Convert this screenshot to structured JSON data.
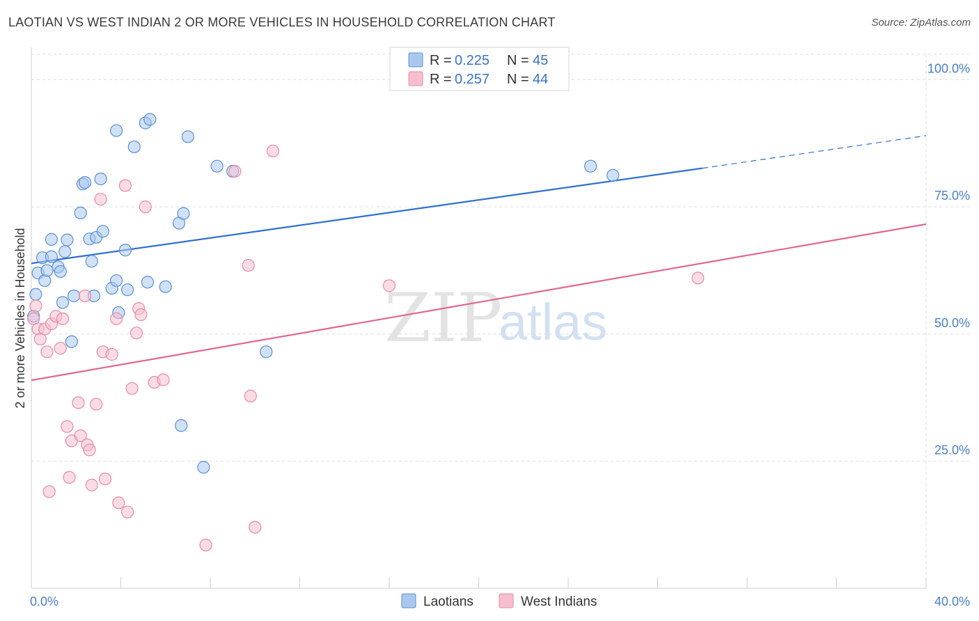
{
  "header": {
    "title": "LAOTIAN VS WEST INDIAN 2 OR MORE VEHICLES IN HOUSEHOLD CORRELATION CHART",
    "source": "Source: ZipAtlas.com"
  },
  "watermark": {
    "zip": "ZIP",
    "atlas": "atlas"
  },
  "legend": {
    "r_label": "R =",
    "n_label": "N =",
    "rows": [
      {
        "r": "0.225",
        "n": "45"
      },
      {
        "r": "0.257",
        "n": "44"
      }
    ]
  },
  "colors": {
    "laotians_fill": "#aac8ee",
    "laotians_stroke": "#5b8fd6",
    "laotians_line": "#2f6fcf",
    "westindians_fill": "#f6bfcf",
    "westindians_stroke": "#e98aa6",
    "westindians_line": "#e0678f",
    "tick_text": "#4a7fc6",
    "grid": "#dddddd"
  },
  "chart_data": {
    "type": "scatter",
    "title": "LAOTIAN VS WEST INDIAN 2 OR MORE VEHICLES IN HOUSEHOLD CORRELATION CHART",
    "xlabel": "",
    "ylabel": "2 or more Vehicles in Household",
    "xlim": [
      0,
      40
    ],
    "ylim": [
      0,
      105
    ],
    "x_tick_labels": [
      "0.0%",
      "40.0%"
    ],
    "y_ticks": [
      25,
      50,
      75,
      100
    ],
    "y_tick_labels": [
      "25.0%",
      "50.0%",
      "75.0%",
      "100.0%"
    ],
    "grid": true,
    "legend_position": "top-center",
    "series": [
      {
        "name": "Laotians",
        "r": 0.225,
        "n": 45,
        "points": [
          [
            0.1,
            53.5
          ],
          [
            0.2,
            57.8
          ],
          [
            0.3,
            62.0
          ],
          [
            0.5,
            65.0
          ],
          [
            0.6,
            60.5
          ],
          [
            0.7,
            62.5
          ],
          [
            0.9,
            65.2
          ],
          [
            0.9,
            68.6
          ],
          [
            1.2,
            63.2
          ],
          [
            1.3,
            62.3
          ],
          [
            1.4,
            56.2
          ],
          [
            1.5,
            66.2
          ],
          [
            1.6,
            68.5
          ],
          [
            1.8,
            48.5
          ],
          [
            1.9,
            57.5
          ],
          [
            2.2,
            73.8
          ],
          [
            2.3,
            79.5
          ],
          [
            2.4,
            79.8
          ],
          [
            2.6,
            68.7
          ],
          [
            2.7,
            64.3
          ],
          [
            2.8,
            57.5
          ],
          [
            2.9,
            69.0
          ],
          [
            3.1,
            80.5
          ],
          [
            3.2,
            70.2
          ],
          [
            3.6,
            59.0
          ],
          [
            3.8,
            60.5
          ],
          [
            3.8,
            90.0
          ],
          [
            3.9,
            54.2
          ],
          [
            4.2,
            66.5
          ],
          [
            4.3,
            58.7
          ],
          [
            4.6,
            86.8
          ],
          [
            5.1,
            91.5
          ],
          [
            5.2,
            60.2
          ],
          [
            5.3,
            92.2
          ],
          [
            6.0,
            59.3
          ],
          [
            6.6,
            71.8
          ],
          [
            6.7,
            32.0
          ],
          [
            6.8,
            73.7
          ],
          [
            7.0,
            88.8
          ],
          [
            7.7,
            23.8
          ],
          [
            8.3,
            83.0
          ],
          [
            9.0,
            82.0
          ],
          [
            10.5,
            46.5
          ],
          [
            25.0,
            83.0
          ],
          [
            26.0,
            81.2
          ]
        ],
        "trend": {
          "x": [
            0,
            30
          ],
          "y": [
            63.9,
            82.6
          ],
          "dashed_to": [
            40,
            89.0
          ]
        }
      },
      {
        "name": "West Indians",
        "r": 0.257,
        "n": 44,
        "points": [
          [
            0.1,
            53.0
          ],
          [
            0.2,
            55.5
          ],
          [
            0.3,
            51.0
          ],
          [
            0.4,
            49.0
          ],
          [
            0.6,
            51.0
          ],
          [
            0.7,
            46.5
          ],
          [
            0.8,
            19.0
          ],
          [
            0.9,
            52.0
          ],
          [
            1.1,
            53.5
          ],
          [
            1.3,
            47.2
          ],
          [
            1.4,
            53.0
          ],
          [
            1.6,
            31.8
          ],
          [
            1.7,
            21.8
          ],
          [
            1.8,
            29.0
          ],
          [
            2.1,
            36.5
          ],
          [
            2.2,
            30.0
          ],
          [
            2.4,
            57.5
          ],
          [
            2.5,
            28.2
          ],
          [
            2.6,
            27.2
          ],
          [
            2.7,
            20.3
          ],
          [
            2.9,
            36.2
          ],
          [
            3.1,
            76.5
          ],
          [
            3.2,
            46.5
          ],
          [
            3.3,
            21.5
          ],
          [
            3.6,
            46.0
          ],
          [
            3.8,
            53.0
          ],
          [
            3.9,
            16.8
          ],
          [
            4.2,
            79.2
          ],
          [
            4.3,
            15.0
          ],
          [
            4.5,
            39.3
          ],
          [
            4.7,
            50.2
          ],
          [
            4.8,
            55.0
          ],
          [
            4.9,
            53.8
          ],
          [
            5.1,
            75.0
          ],
          [
            5.5,
            40.5
          ],
          [
            5.9,
            41.0
          ],
          [
            7.8,
            8.5
          ],
          [
            9.1,
            82.0
          ],
          [
            9.7,
            63.5
          ],
          [
            9.8,
            37.8
          ],
          [
            10.0,
            12.0
          ],
          [
            10.8,
            86.0
          ],
          [
            16.0,
            59.5
          ],
          [
            29.8,
            61.0
          ]
        ],
        "trend": {
          "x": [
            0,
            40
          ],
          "y": [
            40.9,
            71.6
          ]
        }
      }
    ]
  },
  "bottom_legend": [
    "Laotians",
    "West Indians"
  ]
}
